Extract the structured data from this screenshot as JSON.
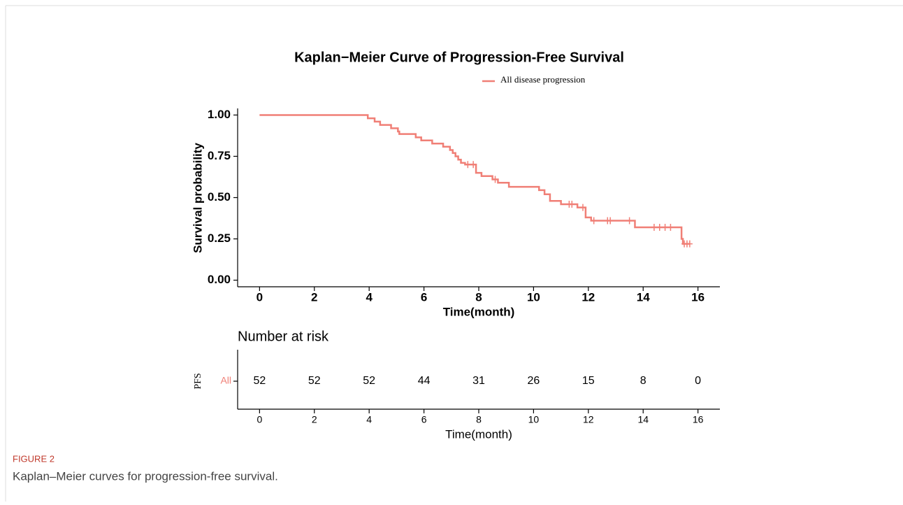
{
  "chart_data": {
    "type": "km",
    "title": "Kaplan−Meier Curve of Progression-Free Survival",
    "xlabel": "Time(month)",
    "ylabel": "Survival probability",
    "xlim": [
      -0.8,
      16.8
    ],
    "ylim": [
      -0.04,
      1.04
    ],
    "xticks": [
      0,
      2,
      4,
      6,
      8,
      10,
      12,
      14,
      16
    ],
    "yticks": [
      {
        "value": 0,
        "label": "0.00"
      },
      {
        "value": 0.25,
        "label": "0.25"
      },
      {
        "value": 0.5,
        "label": "0.50"
      },
      {
        "value": 0.75,
        "label": "0.75"
      },
      {
        "value": 1,
        "label": "1.00"
      }
    ],
    "legend": "top",
    "series": [
      {
        "name": "All disease progression",
        "color": "#f07f76",
        "x": [
          0,
          3.95,
          4.2,
          4.4,
          4.8,
          5.05,
          5.1,
          5.7,
          5.9,
          6.3,
          6.7,
          6.95,
          7.05,
          7.15,
          7.25,
          7.35,
          7.5,
          7.9,
          8.1,
          8.5,
          8.7,
          9.1,
          10.2,
          10.4,
          10.6,
          11.0,
          11.6,
          11.9,
          12.1,
          13.7,
          15.4,
          15.45,
          15.7
        ],
        "values": [
          1.0,
          0.98,
          0.96,
          0.94,
          0.92,
          0.9,
          0.885,
          0.865,
          0.846,
          0.827,
          0.808,
          0.788,
          0.77,
          0.75,
          0.73,
          0.71,
          0.7,
          0.65,
          0.63,
          0.61,
          0.59,
          0.565,
          0.545,
          0.52,
          0.48,
          0.46,
          0.44,
          0.38,
          0.36,
          0.32,
          0.25,
          0.22,
          0.22
        ],
        "censor_x": [
          7.6,
          7.8,
          8.6,
          11.3,
          11.4,
          11.8,
          12.2,
          12.7,
          12.8,
          13.5,
          14.4,
          14.6,
          14.8,
          15.0,
          15.5,
          15.6,
          15.7
        ],
        "censor_values": [
          0.7,
          0.7,
          0.61,
          0.46,
          0.46,
          0.44,
          0.36,
          0.36,
          0.36,
          0.36,
          0.32,
          0.32,
          0.32,
          0.32,
          0.22,
          0.22,
          0.22
        ]
      }
    ],
    "risk_table": {
      "title": "Number at risk",
      "y_label": "PFS",
      "group_label": "All",
      "values": [
        52,
        52,
        52,
        44,
        31,
        26,
        15,
        8,
        0
      ],
      "xlabel": "Time(month)"
    }
  },
  "figure": {
    "label": "FIGURE 2",
    "caption": "Kaplan–Meier curves for progression-free survival."
  }
}
